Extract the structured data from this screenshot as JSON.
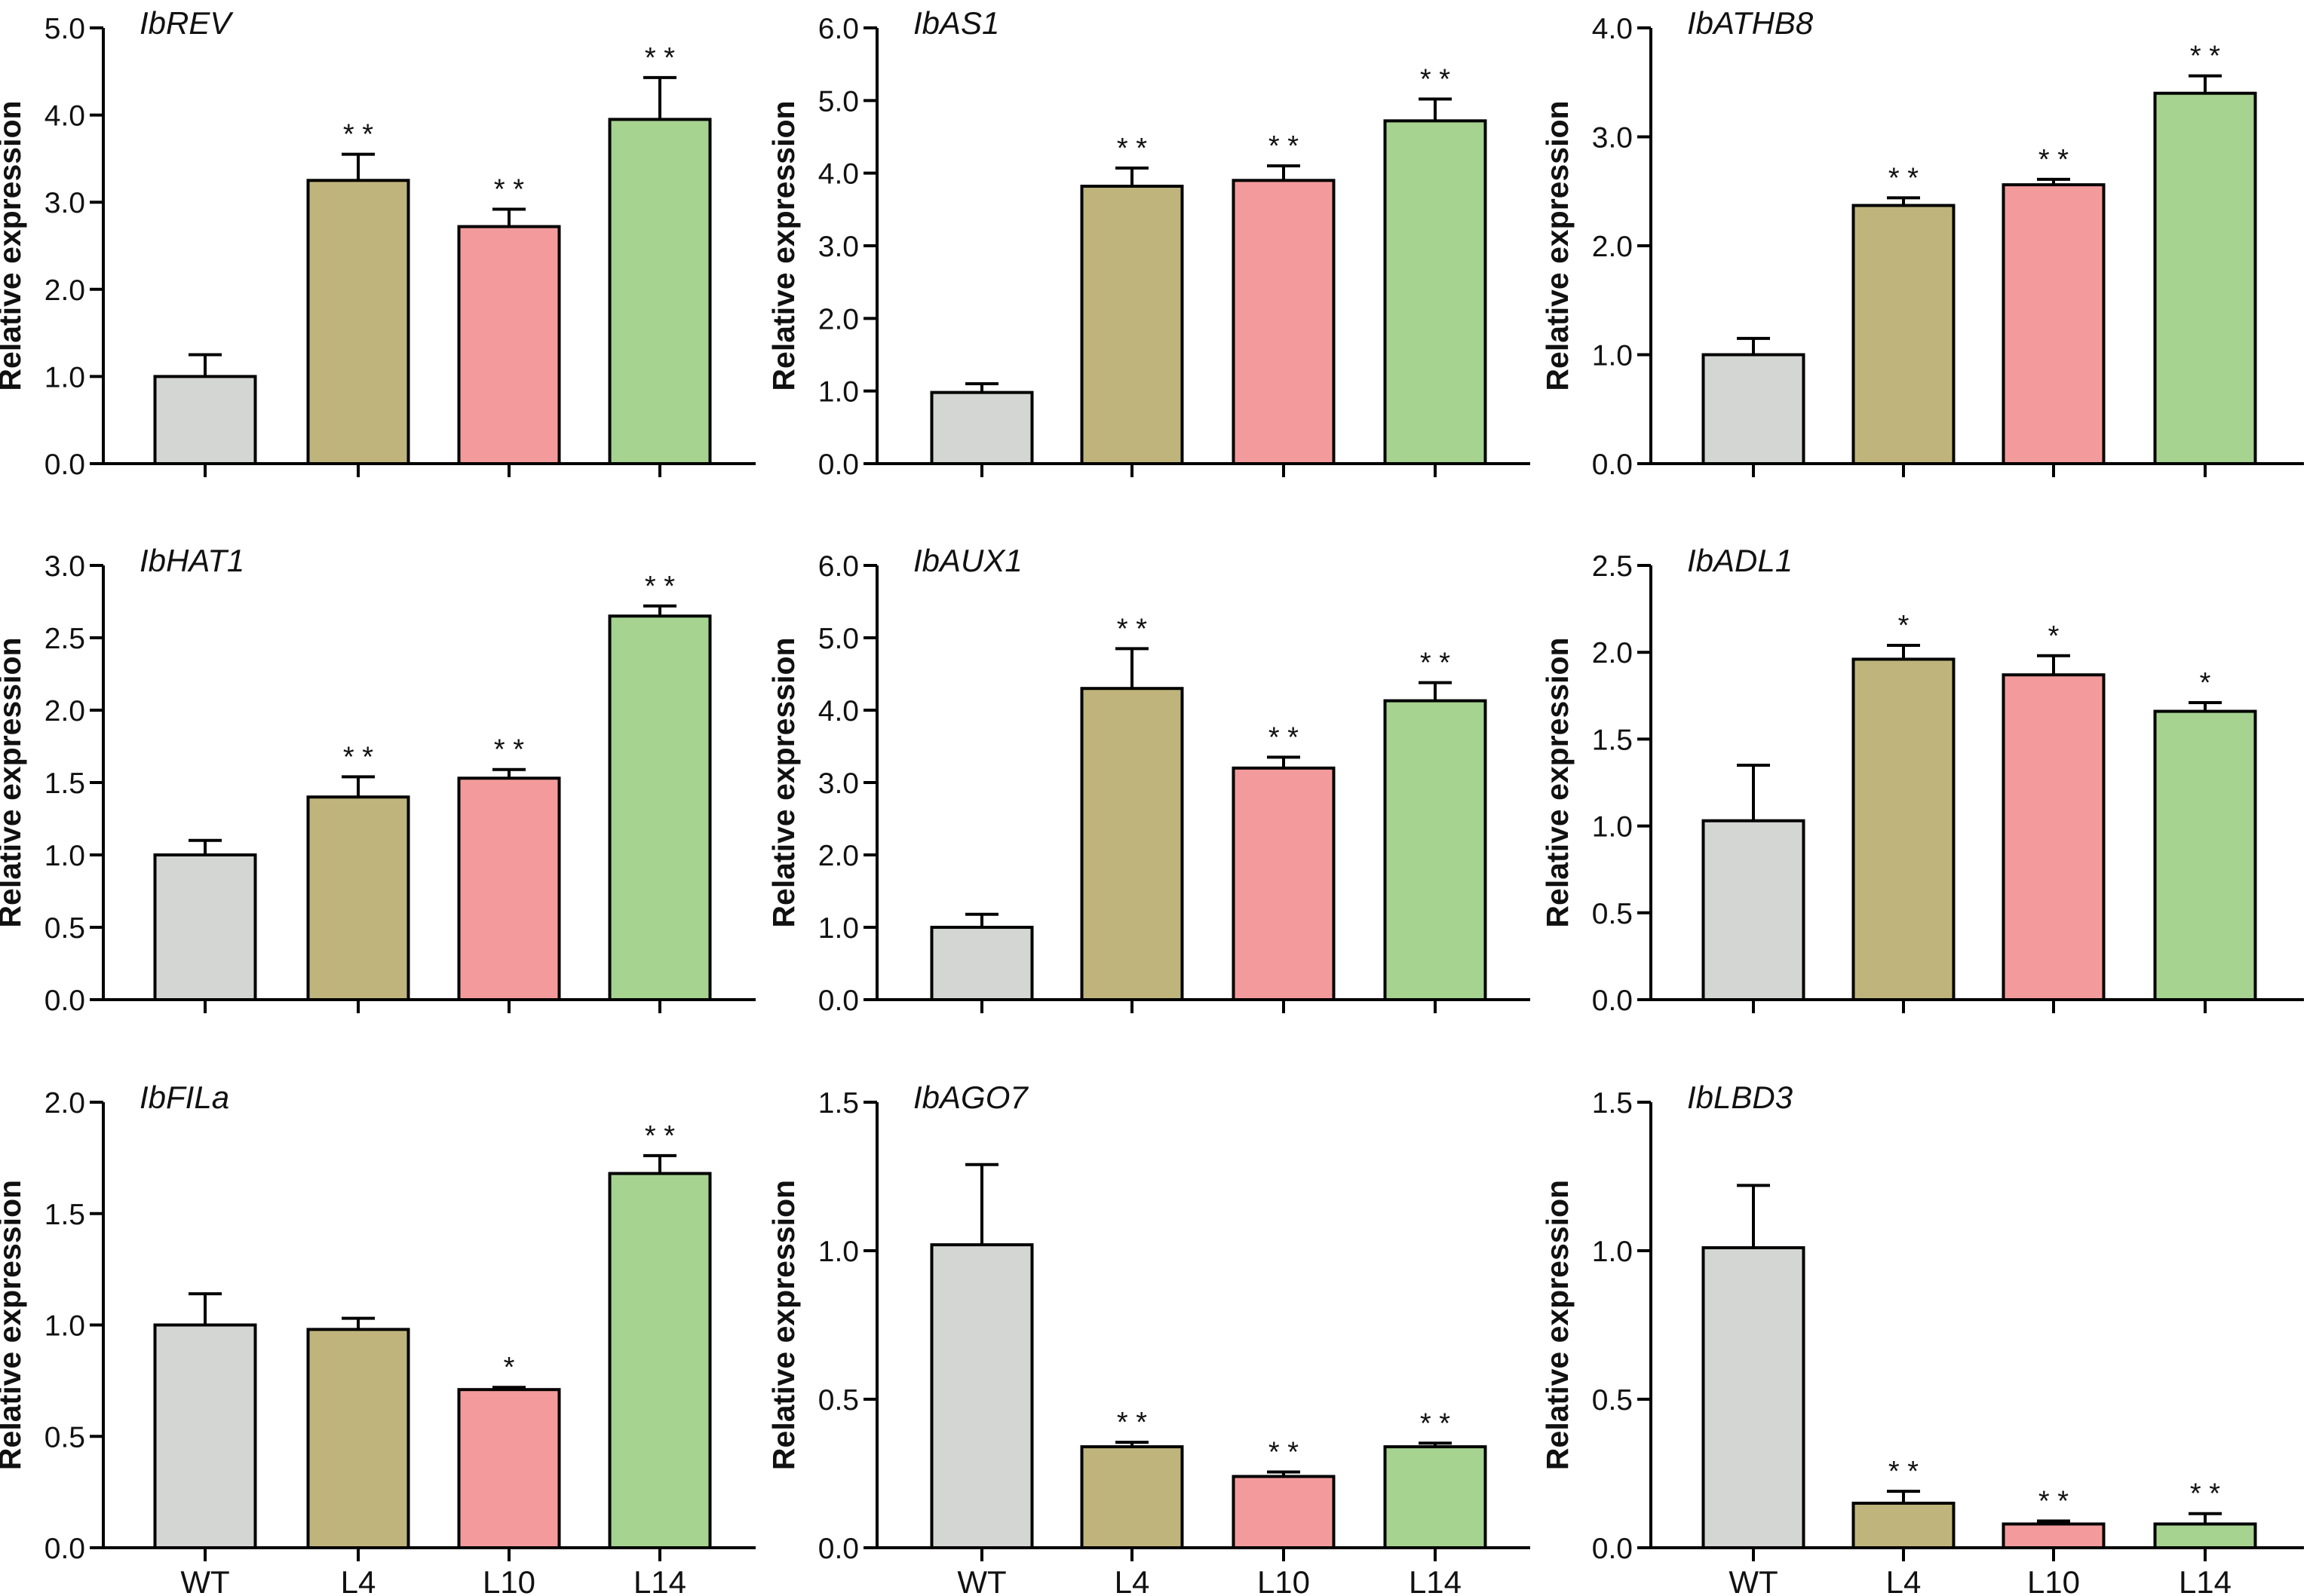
{
  "chart_data": [
    {
      "type": "bar",
      "title": "IbREV",
      "ylabel": "Relative expression",
      "categories": [
        "WT",
        "L4",
        "L10",
        "L14"
      ],
      "values": [
        1.0,
        3.25,
        2.72,
        3.95
      ],
      "errors": [
        0.25,
        0.3,
        0.2,
        0.48
      ],
      "significance": [
        "",
        "**",
        "**",
        "**"
      ],
      "ylim": [
        0,
        5
      ],
      "yticks": [
        "0.0",
        "1.0",
        "2.0",
        "3.0",
        "4.0",
        "5.0"
      ]
    },
    {
      "type": "bar",
      "title": "IbAS1",
      "ylabel": "Relative expression",
      "categories": [
        "WT",
        "L4",
        "L10",
        "L14"
      ],
      "values": [
        0.98,
        3.82,
        3.9,
        4.72
      ],
      "errors": [
        0.12,
        0.25,
        0.2,
        0.3
      ],
      "significance": [
        "",
        "**",
        "**",
        "**"
      ],
      "ylim": [
        0,
        6
      ],
      "yticks": [
        "0.0",
        "1.0",
        "2.0",
        "3.0",
        "4.0",
        "5.0",
        "6.0"
      ]
    },
    {
      "type": "bar",
      "title": "IbATHB8",
      "ylabel": "Relative expression",
      "categories": [
        "WT",
        "L4",
        "L10",
        "L14"
      ],
      "values": [
        1.0,
        2.37,
        2.56,
        3.4
      ],
      "errors": [
        0.15,
        0.07,
        0.05,
        0.16
      ],
      "significance": [
        "",
        "**",
        "**",
        "**"
      ],
      "ylim": [
        0,
        4
      ],
      "yticks": [
        "0.0",
        "1.0",
        "2.0",
        "3.0",
        "4.0"
      ]
    },
    {
      "type": "bar",
      "title": "IbHAT1",
      "ylabel": "Relative expression",
      "categories": [
        "WT",
        "L4",
        "L10",
        "L14"
      ],
      "values": [
        1.0,
        1.4,
        1.53,
        2.65
      ],
      "errors": [
        0.1,
        0.14,
        0.06,
        0.07
      ],
      "significance": [
        "",
        "**",
        "**",
        "**"
      ],
      "ylim": [
        0,
        3
      ],
      "yticks": [
        "0.0",
        "0.5",
        "1.0",
        "1.5",
        "2.0",
        "2.5",
        "3.0"
      ]
    },
    {
      "type": "bar",
      "title": "IbAUX1",
      "ylabel": "Relative expression",
      "categories": [
        "WT",
        "L4",
        "L10",
        "L14"
      ],
      "values": [
        1.0,
        4.3,
        3.2,
        4.13
      ],
      "errors": [
        0.18,
        0.55,
        0.15,
        0.25
      ],
      "significance": [
        "",
        "**",
        "**",
        "**"
      ],
      "ylim": [
        0,
        6
      ],
      "yticks": [
        "0.0",
        "1.0",
        "2.0",
        "3.0",
        "4.0",
        "5.0",
        "6.0"
      ]
    },
    {
      "type": "bar",
      "title": "IbADL1",
      "ylabel": "Relative expression",
      "categories": [
        "WT",
        "L4",
        "L10",
        "L14"
      ],
      "values": [
        1.03,
        1.96,
        1.87,
        1.66
      ],
      "errors": [
        0.32,
        0.08,
        0.11,
        0.05
      ],
      "significance": [
        "",
        "*",
        "*",
        "*"
      ],
      "ylim": [
        0,
        2.5
      ],
      "yticks": [
        "0.0",
        "0.5",
        "1.0",
        "1.5",
        "2.0",
        "2.5"
      ]
    },
    {
      "type": "bar",
      "title": "IbFILa",
      "ylabel": "Relative expression",
      "categories": [
        "WT",
        "L4",
        "L10",
        "L14"
      ],
      "values": [
        1.0,
        0.98,
        0.71,
        1.68
      ],
      "errors": [
        0.14,
        0.05,
        0.01,
        0.08
      ],
      "significance": [
        "",
        "",
        "*",
        "**"
      ],
      "ylim": [
        0,
        2
      ],
      "yticks": [
        "0.0",
        "0.5",
        "1.0",
        "1.5",
        "2.0"
      ]
    },
    {
      "type": "bar",
      "title": "IbAGO7",
      "ylabel": "Relative expression",
      "categories": [
        "WT",
        "L4",
        "L10",
        "L14"
      ],
      "values": [
        1.02,
        0.34,
        0.24,
        0.34
      ],
      "errors": [
        0.27,
        0.015,
        0.015,
        0.012
      ],
      "significance": [
        "",
        "**",
        "**",
        "**"
      ],
      "ylim": [
        0,
        1.5
      ],
      "yticks": [
        "0.0",
        "0.5",
        "1.0",
        "1.5"
      ]
    },
    {
      "type": "bar",
      "title": "IbLBD3",
      "ylabel": "Relative expression",
      "categories": [
        "WT",
        "L4",
        "L10",
        "L14"
      ],
      "values": [
        1.01,
        0.15,
        0.08,
        0.08
      ],
      "errors": [
        0.21,
        0.04,
        0.01,
        0.035
      ],
      "significance": [
        "",
        "**",
        "**",
        "**"
      ],
      "ylim": [
        0,
        1.5
      ],
      "yticks": [
        "0.0",
        "0.5",
        "1.0",
        "1.5"
      ]
    }
  ],
  "bar_colors": [
    "#d4d6d3",
    "#bfb57c",
    "#f39b9c",
    "#a6d390"
  ],
  "axis_color": "#000000"
}
